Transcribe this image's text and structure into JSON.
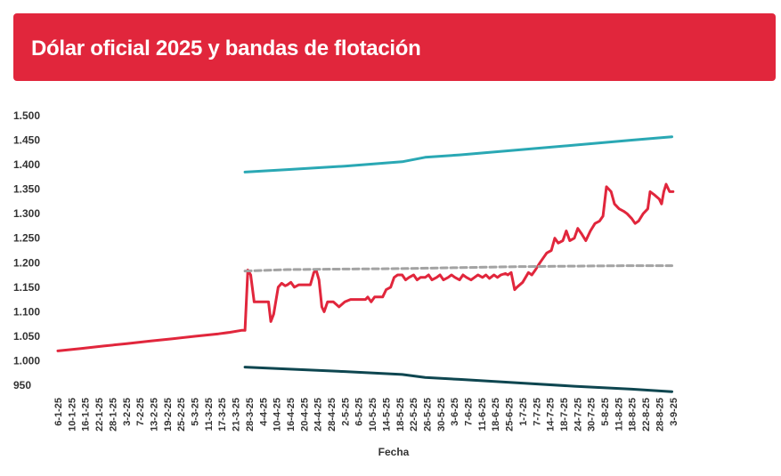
{
  "header": {
    "title": "Dólar oficial 2025 y bandas de flotación"
  },
  "chart_data": {
    "type": "line",
    "title": "Dólar oficial 2025 y bandas de flotación",
    "xlabel": "Fecha",
    "ylabel": "",
    "ylim": [
      950,
      1500
    ],
    "yticks": [
      950,
      1000,
      1050,
      1100,
      1150,
      1200,
      1250,
      1300,
      1350,
      1400,
      1450,
      1500
    ],
    "ytick_labels": [
      "950",
      "1.000",
      "1.050",
      "1.100",
      "1.150",
      "1.200",
      "1.250",
      "1.300",
      "1.350",
      "1.400",
      "1.450",
      "1.500"
    ],
    "x_dates": [
      "6-1-25",
      "10-1-25",
      "16-1-25",
      "22-1-25",
      "28-1-25",
      "3-2-25",
      "7-2-25",
      "13-2-25",
      "19-2-25",
      "25-2-25",
      "5-3-25",
      "11-3-25",
      "17-3-25",
      "21-3-25",
      "28-3-25",
      "4-4-25",
      "10-4-25",
      "16-4-25",
      "20-4-25",
      "24-4-25",
      "28-4-25",
      "2-5-25",
      "6-5-25",
      "10-5-25",
      "14-5-25",
      "18-5-25",
      "22-5-25",
      "26-5-25",
      "30-5-25",
      "3-6-25",
      "7-6-25",
      "11-6-25",
      "18-6-25",
      "25-6-25",
      "1-7-25",
      "7-7-25",
      "14-7-25",
      "18-7-25",
      "24-7-25",
      "30-7-25",
      "5-8-25",
      "11-8-25",
      "18-8-25",
      "22-8-25",
      "28-8-25",
      "3-9-25"
    ],
    "grid": false,
    "legend": "none",
    "series": [
      {
        "color": "#e1263c",
        "style": "solid",
        "points": [
          [
            0,
            1020
          ],
          [
            2,
            1025
          ],
          [
            4,
            1030
          ],
          [
            6,
            1035
          ],
          [
            8,
            1040
          ],
          [
            10,
            1045
          ],
          [
            12,
            1050
          ],
          [
            14,
            1055
          ],
          [
            15,
            1058
          ],
          [
            16,
            1062
          ],
          [
            16.3,
            1062
          ],
          [
            16.55,
            1185
          ],
          [
            16.8,
            1175
          ],
          [
            17.1,
            1120
          ],
          [
            17.5,
            1120
          ],
          [
            18,
            1120
          ],
          [
            18.35,
            1120
          ],
          [
            18.55,
            1080
          ],
          [
            18.8,
            1095
          ],
          [
            19.2,
            1150
          ],
          [
            19.5,
            1158
          ],
          [
            19.8,
            1153
          ],
          [
            20,
            1155
          ],
          [
            20.3,
            1160
          ],
          [
            20.6,
            1150
          ],
          [
            21,
            1155
          ],
          [
            21.5,
            1155
          ],
          [
            22,
            1155
          ],
          [
            22.3,
            1180
          ],
          [
            22.5,
            1185
          ],
          [
            22.75,
            1165
          ],
          [
            23,
            1110
          ],
          [
            23.2,
            1100
          ],
          [
            23.5,
            1120
          ],
          [
            24,
            1120
          ],
          [
            24.5,
            1110
          ],
          [
            25,
            1120
          ],
          [
            25.5,
            1125
          ],
          [
            26,
            1125
          ],
          [
            26.5,
            1125
          ],
          [
            26.8,
            1125
          ],
          [
            27,
            1130
          ],
          [
            27.3,
            1120
          ],
          [
            27.6,
            1130
          ],
          [
            28,
            1130
          ],
          [
            28.3,
            1130
          ],
          [
            28.6,
            1145
          ],
          [
            29,
            1150
          ],
          [
            29.3,
            1170
          ],
          [
            29.6,
            1175
          ],
          [
            30,
            1175
          ],
          [
            30.3,
            1165
          ],
          [
            30.6,
            1170
          ],
          [
            31,
            1175
          ],
          [
            31.3,
            1165
          ],
          [
            31.6,
            1170
          ],
          [
            32,
            1170
          ],
          [
            32.3,
            1175
          ],
          [
            32.6,
            1165
          ],
          [
            33,
            1170
          ],
          [
            33.3,
            1175
          ],
          [
            33.6,
            1165
          ],
          [
            34,
            1170
          ],
          [
            34.3,
            1175
          ],
          [
            34.6,
            1170
          ],
          [
            35,
            1165
          ],
          [
            35.3,
            1175
          ],
          [
            35.6,
            1170
          ],
          [
            36,
            1165
          ],
          [
            36.3,
            1170
          ],
          [
            36.6,
            1175
          ],
          [
            37,
            1170
          ],
          [
            37.3,
            1175
          ],
          [
            37.6,
            1168
          ],
          [
            38,
            1175
          ],
          [
            38.3,
            1170
          ],
          [
            38.6,
            1175
          ],
          [
            39,
            1178
          ],
          [
            39.2,
            1175
          ],
          [
            39.5,
            1180
          ],
          [
            39.8,
            1145
          ],
          [
            40,
            1150
          ],
          [
            40.5,
            1160
          ],
          [
            41,
            1180
          ],
          [
            41.3,
            1175
          ],
          [
            41.6,
            1185
          ],
          [
            42,
            1200
          ],
          [
            42.3,
            1210
          ],
          [
            42.6,
            1220
          ],
          [
            43,
            1225
          ],
          [
            43.3,
            1250
          ],
          [
            43.6,
            1240
          ],
          [
            44,
            1245
          ],
          [
            44.3,
            1265
          ],
          [
            44.6,
            1245
          ],
          [
            45,
            1250
          ],
          [
            45.3,
            1270
          ],
          [
            45.6,
            1260
          ],
          [
            46,
            1245
          ]
        ],
        "points_tail": [
          [
            46.4,
            1265
          ],
          [
            46.8,
            1280
          ],
          [
            47.2,
            1285
          ],
          [
            47.5,
            1295
          ],
          [
            47.8,
            1355
          ],
          [
            48.2,
            1345
          ],
          [
            48.5,
            1320
          ],
          [
            48.9,
            1310
          ],
          [
            49.3,
            1305
          ],
          [
            49.6,
            1300
          ],
          [
            50,
            1290
          ],
          [
            50.3,
            1280
          ],
          [
            50.6,
            1285
          ],
          [
            51,
            1300
          ],
          [
            51.4,
            1310
          ],
          [
            51.6,
            1345
          ],
          [
            52,
            1338
          ],
          [
            52.4,
            1330
          ],
          [
            52.6,
            1320
          ],
          [
            52.8,
            1345
          ],
          [
            53,
            1360
          ],
          [
            53.3,
            1345
          ],
          [
            53.6,
            1345
          ]
        ]
      },
      {
        "color": "#2aa8b4",
        "style": "solid",
        "points": [
          [
            16.3,
            1385
          ],
          [
            20,
            1390
          ],
          [
            25,
            1397
          ],
          [
            30,
            1406
          ],
          [
            32,
            1415
          ],
          [
            35,
            1420
          ],
          [
            40,
            1430
          ],
          [
            45,
            1440
          ],
          [
            50,
            1450
          ],
          [
            53.5,
            1457
          ]
        ]
      },
      {
        "color": "#a3a3a3",
        "style": "dashed",
        "points": [
          [
            16.3,
            1183
          ],
          [
            20,
            1186
          ],
          [
            25,
            1187
          ],
          [
            30,
            1188
          ],
          [
            35,
            1190
          ],
          [
            40,
            1192
          ],
          [
            45,
            1193
          ],
          [
            50,
            1194
          ],
          [
            53.5,
            1194
          ]
        ]
      },
      {
        "color": "#0e4650",
        "style": "solid",
        "points": [
          [
            16.3,
            987
          ],
          [
            20,
            983
          ],
          [
            25,
            978
          ],
          [
            30,
            972
          ],
          [
            32,
            966
          ],
          [
            35,
            962
          ],
          [
            40,
            955
          ],
          [
            45,
            948
          ],
          [
            50,
            942
          ],
          [
            53.5,
            937
          ]
        ]
      }
    ]
  }
}
